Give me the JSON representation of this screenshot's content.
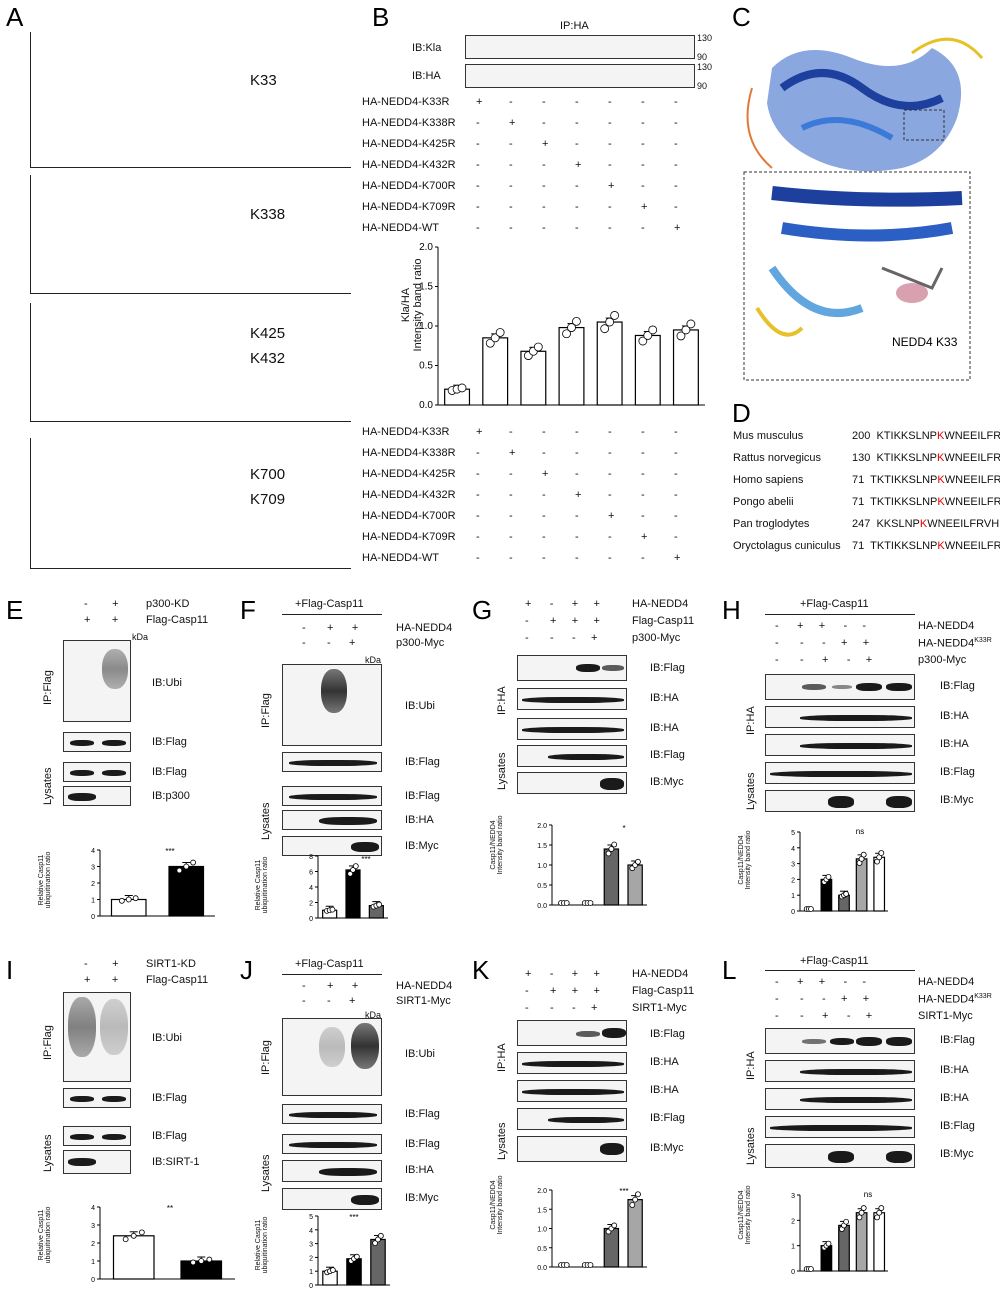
{
  "panels": {
    "A": {
      "label": "A",
      "site_labels": [
        "K33",
        "K338",
        "K425",
        "K432",
        "K700",
        "K709"
      ]
    },
    "B": {
      "label": "B",
      "ip_title": "IP:HA",
      "blots": [
        "IB:Kla",
        "IB:HA"
      ],
      "markers": [
        "130",
        "90",
        "130",
        "90"
      ],
      "conditions": [
        "HA-NEDD4-K33R",
        "HA-NEDD4-K338R",
        "HA-NEDD4-K425R",
        "HA-NEDD4-K432R",
        "HA-NEDD4-K700R",
        "HA-NEDD4-K709R",
        "HA-NEDD4-WT"
      ],
      "ylabel": "Kla/HA\nIntensity band ratio"
    },
    "C": {
      "label": "C",
      "structure_label": "NEDD4 K33"
    },
    "D": {
      "label": "D",
      "rows": [
        {
          "species": "Mus musculus",
          "num": "200",
          "pre": "KTIKKSLNP",
          "k": "K",
          "post": "WNEEILFRVL"
        },
        {
          "species": "Rattus norvegicus",
          "num": "130",
          "pre": "KTIKKSLNP",
          "k": "K",
          "post": "WNEEILFRVL"
        },
        {
          "species": "Homo sapiens",
          "num": "71",
          "pre": "TKTIKKSLNP",
          "k": "K",
          "post": "WNEEILFRV"
        },
        {
          "species": "Pongo abelii",
          "num": "71",
          "pre": "TKTIKKSLNP",
          "k": "K",
          "post": "WNEEILFRV"
        },
        {
          "species": "Pan troglodytes",
          "num": "247",
          "pre": "KKSLNP",
          "k": "K",
          "post": "WNEEILFRVHPQ"
        },
        {
          "species": "Oryctolagus cuniculus",
          "num": "71",
          "pre": "TKTIKKSLNP",
          "k": "K",
          "post": "WNEEILFRV"
        }
      ]
    },
    "E": {
      "label": "E",
      "cond1": "p300-KD",
      "cond2": "Flag-Casp11",
      "ip": "IP:Flag",
      "lys": "Lysates",
      "blots": [
        "IB:Ubi",
        "IB:Flag",
        "IB:Flag",
        "IB:p300"
      ],
      "kda": "kDa",
      "ylabel": "Relative Casp11\nubiquitination ratio",
      "xcond": "p300-KD",
      "sig": "***"
    },
    "F": {
      "label": "F",
      "top": "+Flag-Casp11",
      "cond1": "HA-NEDD4",
      "cond2": "p300-Myc",
      "ip": "IP:Flag",
      "lys": "Lysates",
      "blots": [
        "IB:Ubi",
        "IB:Flag",
        "IB:Flag",
        "IB:HA",
        "IB:Myc"
      ],
      "kda": "kDa",
      "ylabel": "Relative Casp11\nubiquitination ratio",
      "sig": "***"
    },
    "G": {
      "label": "G",
      "cond1": "HA-NEDD4",
      "cond2": "Flag-Casp11",
      "cond3": "p300-Myc",
      "ip": "IP:HA",
      "lys": "Lysates",
      "blots": [
        "IB:Flag",
        "IB:HA",
        "IB:HA",
        "IB:Flag",
        "IB:Myc"
      ],
      "ylabel": "Casp11/NEDD4\nIntensity band ratio",
      "sig": "*"
    },
    "H": {
      "label": "H",
      "top": "+Flag-Casp11",
      "cond1": "HA-NEDD4",
      "cond2": "HA-NEDD4K33R",
      "cond3": "p300-Myc",
      "ip": "IP:HA",
      "lys": "Lysates",
      "blots": [
        "IB:Flag",
        "IB:HA",
        "IB:HA",
        "IB:Flag",
        "IB:Myc"
      ],
      "ylabel": "Casp11/NEDD4\nIntensity band ratio",
      "ns": "ns"
    },
    "I": {
      "label": "I",
      "cond1": "SIRT1-KD",
      "cond2": "Flag-Casp11",
      "ip": "IP:Flag",
      "lys": "Lysates",
      "blots": [
        "IB:Ubi",
        "IB:Flag",
        "IB:Flag",
        "IB:SIRT-1"
      ],
      "ylabel": "Relative Casp11\nubiquitination ratio",
      "xcond": "SIRT1-KD",
      "sig": "**"
    },
    "J": {
      "label": "J",
      "top": "+Flag-Casp11",
      "cond1": "HA-NEDD4",
      "cond2": "SIRT1-Myc",
      "ip": "IP:Flag",
      "lys": "Lysates",
      "blots": [
        "IB:Ubi",
        "IB:Flag",
        "IB:Flag",
        "IB:HA",
        "IB:Myc"
      ],
      "kda": "kDa",
      "ylabel": "Relative Casp11\nubiquitination ratio",
      "sig": "***"
    },
    "K": {
      "label": "K",
      "cond1": "HA-NEDD4",
      "cond2": "Flag-Casp11",
      "cond3": "SIRT1-Myc",
      "ip": "IP:HA",
      "lys": "Lysates",
      "blots": [
        "IB:Flag",
        "IB:HA",
        "IB:HA",
        "IB:Flag",
        "IB:Myc"
      ],
      "ylabel": "Casp11/NEDD4\nIntensity band ratio",
      "sig": "***"
    },
    "L": {
      "label": "L",
      "top": "+Flag-Casp11",
      "cond1": "HA-NEDD4",
      "cond2": "HA-NEDD4K33R",
      "cond3": "SIRT1-Myc",
      "ip": "IP:HA",
      "lys": "Lysates",
      "blots": [
        "IB:Flag",
        "IB:HA",
        "IB:HA",
        "IB:Flag",
        "IB:Myc"
      ],
      "ylabel": "Casp11/NEDD4\nIntensity band ratio",
      "ns": "ns"
    }
  },
  "chart_data": [
    {
      "id": "B",
      "type": "bar",
      "categories": [
        "K33R",
        "K338R",
        "K425R",
        "K432R",
        "K700R",
        "K709R",
        "WT"
      ],
      "values": [
        0.2,
        0.85,
        0.68,
        0.98,
        1.05,
        0.88,
        0.95
      ],
      "ylim": [
        0,
        2.0
      ],
      "yticks": [
        "0.0",
        "0.5",
        "1.0",
        "1.5",
        "2.0"
      ]
    },
    {
      "id": "E",
      "type": "bar",
      "categories": [
        "-",
        "+"
      ],
      "values": [
        1.0,
        3.0
      ],
      "ylim": [
        0,
        4
      ],
      "yticks": [
        "0",
        "1",
        "2",
        "3",
        "4"
      ]
    },
    {
      "id": "F",
      "type": "bar",
      "categories": [
        "1",
        "2",
        "3"
      ],
      "values": [
        1.0,
        6.2,
        1.6
      ],
      "ylim": [
        0,
        8
      ],
      "yticks": [
        "0",
        "2",
        "4",
        "6",
        "8"
      ]
    },
    {
      "id": "G",
      "type": "bar",
      "categories": [
        "1",
        "2",
        "3",
        "4"
      ],
      "values": [
        0,
        0,
        1.4,
        1.0
      ],
      "ylim": [
        0,
        2.0
      ],
      "yticks": [
        "0.0",
        "0.5",
        "1.0",
        "1.5",
        "2.0"
      ]
    },
    {
      "id": "H",
      "type": "bar",
      "categories": [
        "1",
        "2",
        "3",
        "4",
        "5"
      ],
      "values": [
        0,
        2.0,
        1.0,
        3.3,
        3.4
      ],
      "ylim": [
        0,
        5
      ],
      "yticks": [
        "0",
        "1",
        "2",
        "3",
        "4",
        "5"
      ]
    },
    {
      "id": "I",
      "type": "bar",
      "categories": [
        "-",
        "+"
      ],
      "values": [
        2.4,
        1.0
      ],
      "ylim": [
        0,
        4
      ],
      "yticks": [
        "0",
        "1",
        "2",
        "3",
        "4"
      ]
    },
    {
      "id": "J",
      "type": "bar",
      "categories": [
        "1",
        "2",
        "3"
      ],
      "values": [
        1.0,
        1.9,
        3.3
      ],
      "ylim": [
        0,
        5
      ],
      "yticks": [
        "0",
        "1",
        "2",
        "3",
        "4",
        "5"
      ]
    },
    {
      "id": "K",
      "type": "bar",
      "categories": [
        "1",
        "2",
        "3",
        "4"
      ],
      "values": [
        0,
        0,
        1.0,
        1.75
      ],
      "ylim": [
        0,
        2.0
      ],
      "yticks": [
        "0.0",
        "0.5",
        "1.0",
        "1.5",
        "2.0"
      ]
    },
    {
      "id": "L",
      "type": "bar",
      "categories": [
        "1",
        "2",
        "3",
        "4",
        "5"
      ],
      "values": [
        0,
        1.0,
        1.8,
        2.3,
        2.3
      ],
      "ylim": [
        0,
        3
      ],
      "yticks": [
        "0",
        "1",
        "2",
        "3"
      ]
    }
  ],
  "colors": {
    "bar_black": "#000000",
    "bar_dark": "#666666",
    "bar_mid": "#a6a6a6",
    "bar_light": "#d0d0d0",
    "bar_white": "#ffffff",
    "highlight_k": "#e00000"
  }
}
